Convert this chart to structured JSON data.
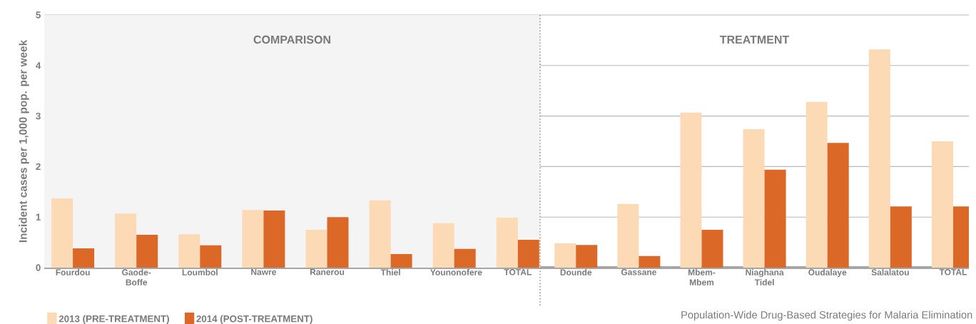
{
  "chart_data": [
    {
      "type": "bar",
      "title": "COMPARISON",
      "ylabel": "Incident cases per 1,000 pop. per week",
      "categories": [
        "Fourdou",
        "Gaode-Boffe",
        "Loumbol",
        "Nawre",
        "Ranerou",
        "Thiel",
        "Younonofere",
        "TOTAL"
      ],
      "series": [
        {
          "name": "2013 (PRE-TREATMENT)",
          "color": "#fbdab5",
          "values": [
            1.37,
            1.07,
            0.66,
            1.14,
            0.75,
            1.33,
            0.88,
            0.99
          ]
        },
        {
          "name": "2014 (POST-TREATMENT)",
          "color": "#dc6828",
          "values": [
            0.38,
            0.65,
            0.44,
            1.13,
            1.0,
            0.27,
            0.37,
            0.55
          ]
        }
      ],
      "ylim": [
        0,
        5
      ],
      "yticks": [
        0,
        1,
        2,
        3,
        4,
        5
      ],
      "grid": "y",
      "legend": "bottom left"
    },
    {
      "type": "bar",
      "title": "TREATMENT",
      "categories": [
        "Dounde",
        "Gassane",
        "Mbem-Mbem",
        "Niaghana Tidel",
        "Oudalaye",
        "Salalatou",
        "TOTAL"
      ],
      "series": [
        {
          "color": "#fbdab5",
          "values": [
            0.48,
            1.26,
            3.07,
            2.74,
            3.28,
            4.32,
            2.5
          ]
        },
        {
          "color": "#dc6828",
          "values": [
            0.45,
            0.23,
            0.75,
            1.94,
            2.47,
            1.21,
            1.21
          ]
        }
      ],
      "ylim": [
        0,
        5
      ],
      "yticks": [
        0,
        1,
        2,
        3,
        4,
        5
      ],
      "grid": "y",
      "tick_labels": "x",
      "annotations": [
        "Population-Wide Drug-Based Strategies for Malaria Elimination"
      ]
    }
  ]
}
